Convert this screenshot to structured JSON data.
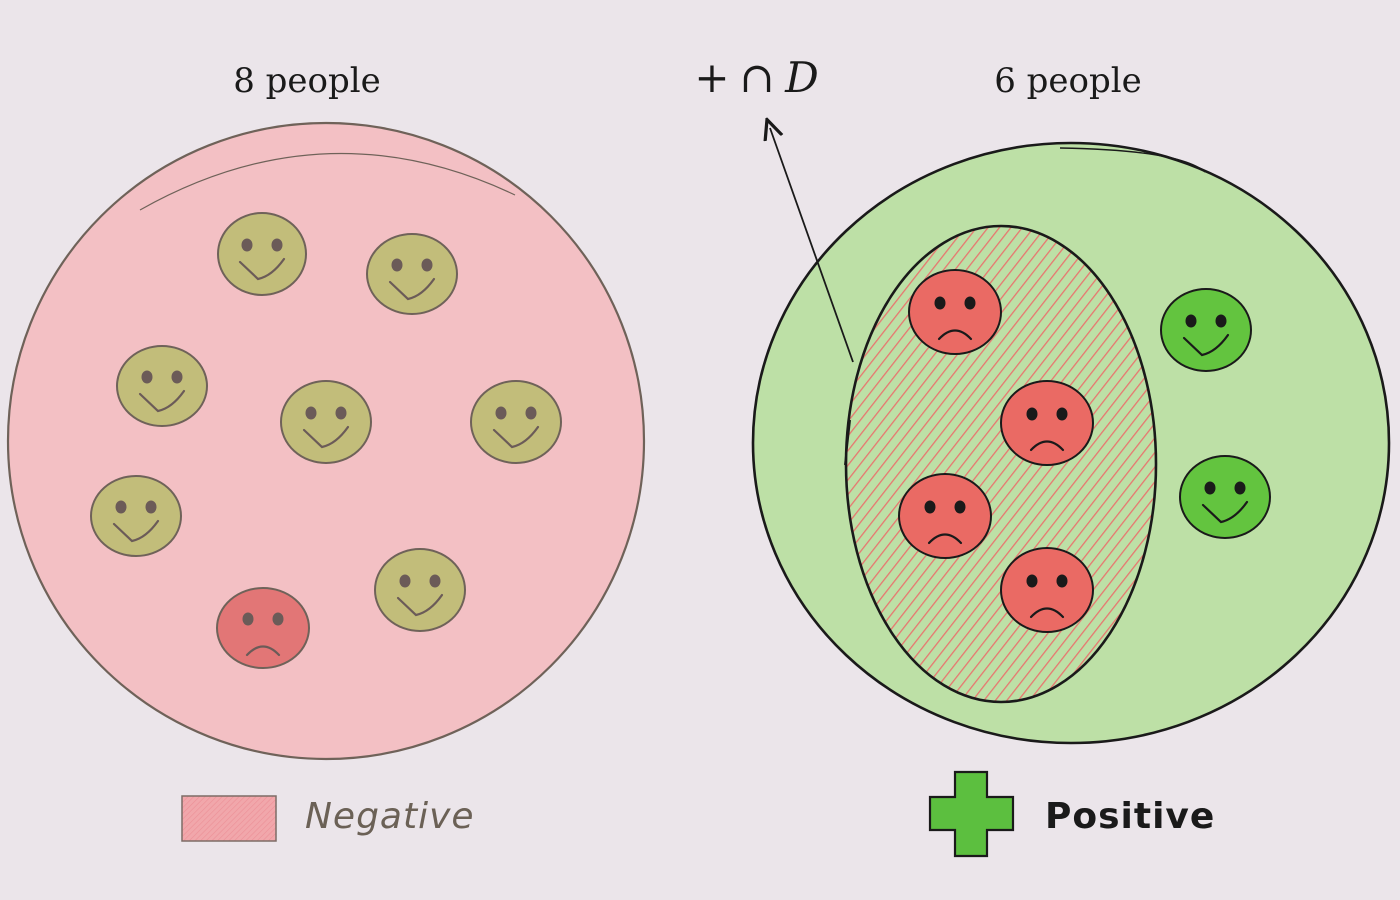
{
  "left_group": {
    "title": "8 people",
    "fill_color": "#f3c0c4",
    "legend_label": "Negative",
    "legend_label_color": "#6b6156",
    "faces": [
      "happy",
      "happy",
      "happy",
      "happy",
      "happy",
      "happy",
      "happy",
      "sad"
    ]
  },
  "right_group": {
    "title": "6 people",
    "fill_color": "#bde0a6",
    "legend_label": "Positive",
    "legend_label_color": "#1a1a1a",
    "legend_icon": "plus-icon",
    "legend_icon_color": "#5cbf3f",
    "faces": [
      "sad",
      "sad",
      "sad",
      "sad",
      "happy",
      "happy"
    ]
  },
  "intersection_label": {
    "symbol_plus": "+",
    "symbol_cap": "∩",
    "symbol_set": "D"
  },
  "colors": {
    "olive_face": "#c2bd7a",
    "red_face": "#ea6a64",
    "green_face": "#63c43f",
    "muted_red_face": "#e27676",
    "hatch": "#e8766f"
  }
}
